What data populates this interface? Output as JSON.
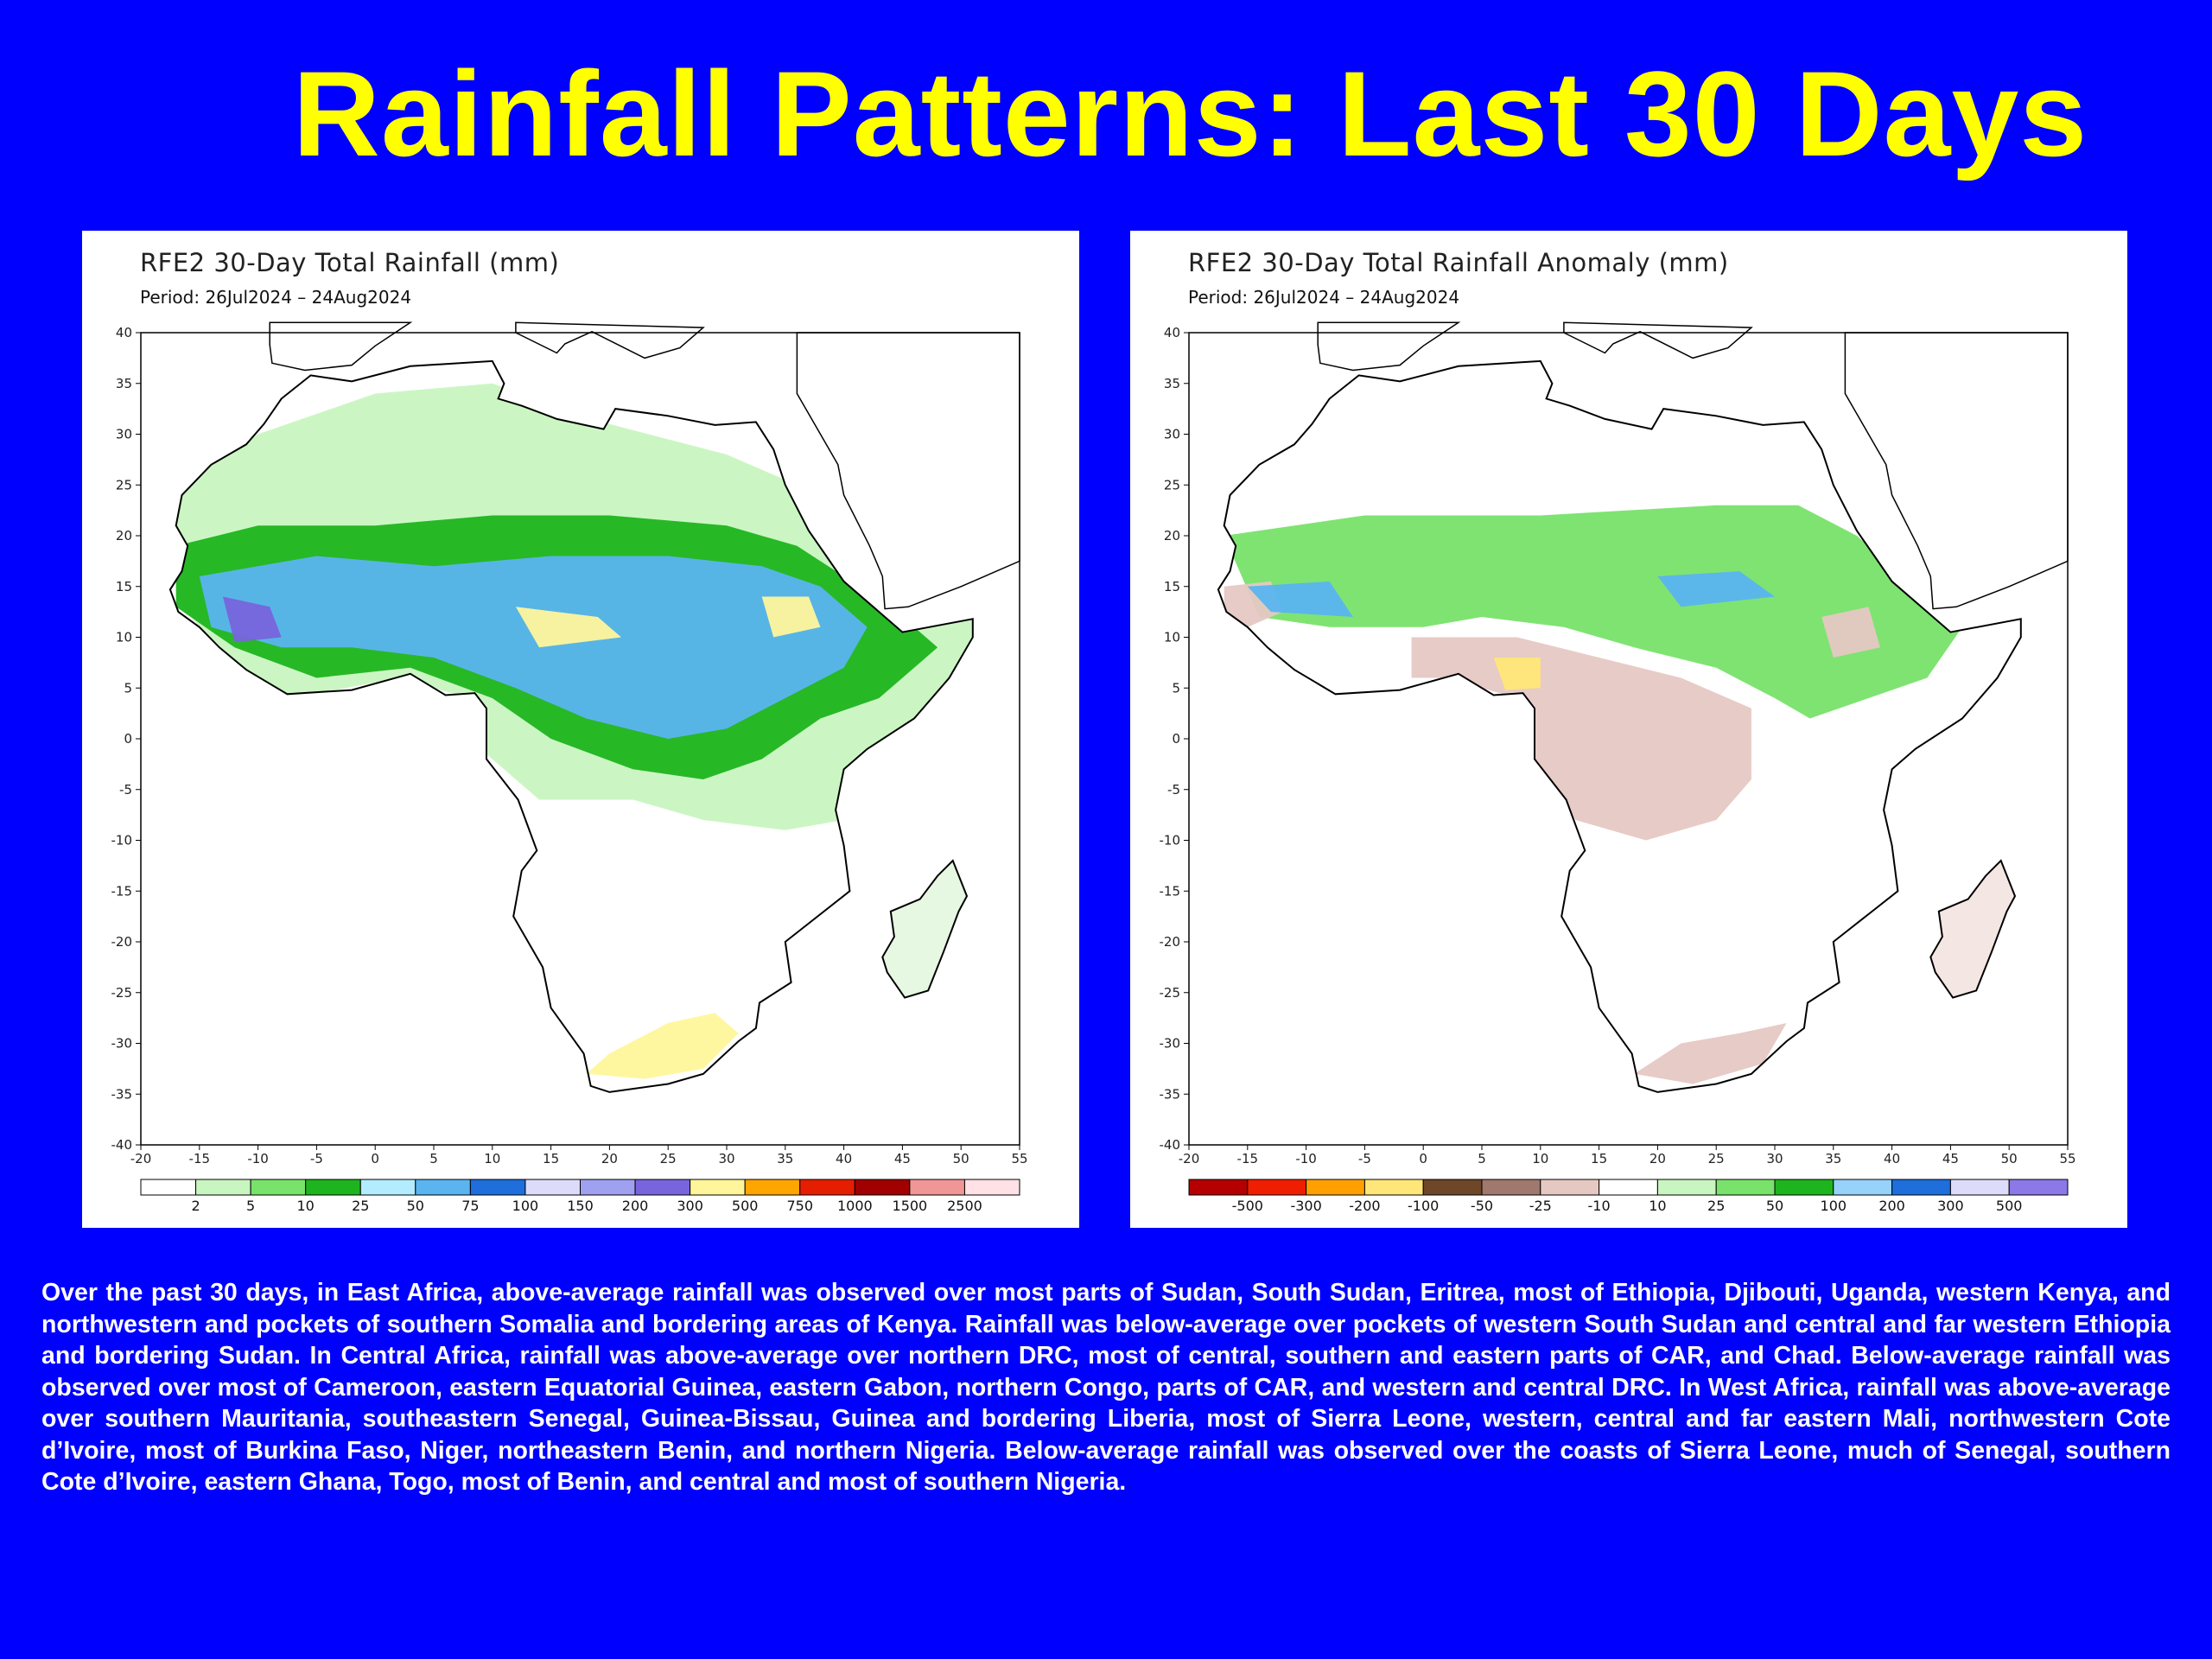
{
  "slide": {
    "title": "Rainfall Patterns: Last 30 Days",
    "description": "Over the past 30 days, in East Africa, above-average rainfall was observed over most parts of Sudan, South Sudan, Eritrea, most of Ethiopia, Djibouti, Uganda, western Kenya, and northwestern and pockets of southern Somalia and bordering areas of Kenya. Rainfall was below-average over pockets of western South Sudan and central and far western Ethiopia and bordering Sudan. In Central Africa, rainfall was above-average over northern DRC, most of central, southern and eastern parts of CAR, and Chad. Below-average rainfall was observed over most of Cameroon, eastern Equatorial Guinea, eastern Gabon, northern Congo, parts of CAR, and western and central DRC. In West Africa, rainfall was above-average over southern Mauritania, southeastern Senegal, Guinea-Bissau, Guinea and bordering Liberia, most of Sierra Leone, western, central and far eastern Mali, northwestern Cote d’Ivoire, most of Burkina Faso, Niger, northeastern Benin, and northern Nigeria. Below-average rainfall was observed over the coasts of Sierra Leone, much of Senegal, southern Cote d’Ivoire, eastern Ghana, Togo, most of Benin, and central and most of southern Nigeria.",
    "background_color": "#0000FF",
    "title_color": "#FFFF00"
  },
  "maps": [
    {
      "title": "RFE2 30-Day Total Rainfall (mm)",
      "period": "Period: 26Jul2024 – 24Aug2024",
      "lat_ticks": [
        "40",
        "35",
        "30",
        "25",
        "20",
        "15",
        "10",
        "5",
        "0",
        "-5",
        "-10",
        "-15",
        "-20",
        "-25",
        "-30",
        "-35",
        "-40"
      ],
      "lon_ticks": [
        "-20",
        "-15",
        "-10",
        "-5",
        "0",
        "5",
        "10",
        "15",
        "20",
        "25",
        "30",
        "35",
        "40",
        "45",
        "50",
        "55"
      ],
      "legend": {
        "colors": [
          "#FFFFFF",
          "#C8F5C0",
          "#78E26A",
          "#1EB41E",
          "#B4ECFF",
          "#5AB4F0",
          "#1E6EDC",
          "#DCDCFA",
          "#A0A0F0",
          "#7864DC",
          "#FFF59B",
          "#FFA500",
          "#E61E00",
          "#A00000",
          "#F09696",
          "#FFE1E6"
        ],
        "labels": [
          "2",
          "5",
          "10",
          "25",
          "50",
          "75",
          "100",
          "150",
          "200",
          "300",
          "500",
          "750",
          "1000",
          "1500",
          "2500"
        ]
      },
      "layers": [
        "#C8F5C0",
        "#1EB41E",
        "#5AB4F0",
        "#7864DC",
        "#FFF59B"
      ]
    },
    {
      "title": "RFE2 30-Day Total Rainfall Anomaly (mm)",
      "period": "Period: 26Jul2024 – 24Aug2024",
      "lat_ticks": [
        "40",
        "35",
        "30",
        "25",
        "20",
        "15",
        "10",
        "5",
        "0",
        "-5",
        "-10",
        "-15",
        "-20",
        "-25",
        "-30",
        "-35",
        "-40"
      ],
      "lon_ticks": [
        "-20",
        "-15",
        "-10",
        "-5",
        "0",
        "5",
        "10",
        "15",
        "20",
        "25",
        "30",
        "35",
        "40",
        "45",
        "50",
        "55"
      ],
      "legend": {
        "colors": [
          "#B40000",
          "#F01E00",
          "#FFA000",
          "#FFE678",
          "#6E4628",
          "#A0786E",
          "#E6C8C3",
          "#FFFFFF",
          "#C8F5C0",
          "#78E26A",
          "#1EB41E",
          "#96D2FA",
          "#1E6EDC",
          "#DCDCFA",
          "#8C78E6"
        ],
        "labels": [
          "-500",
          "-300",
          "-200",
          "-100",
          "-50",
          "-25",
          "-10",
          "10",
          "25",
          "50",
          "100",
          "200",
          "300",
          "500"
        ]
      },
      "layers": [
        "#E6C8C3",
        "#78E26A",
        "#1EB41E",
        "#5AB4F0",
        "#8C5A46",
        "#FFE678"
      ]
    }
  ]
}
